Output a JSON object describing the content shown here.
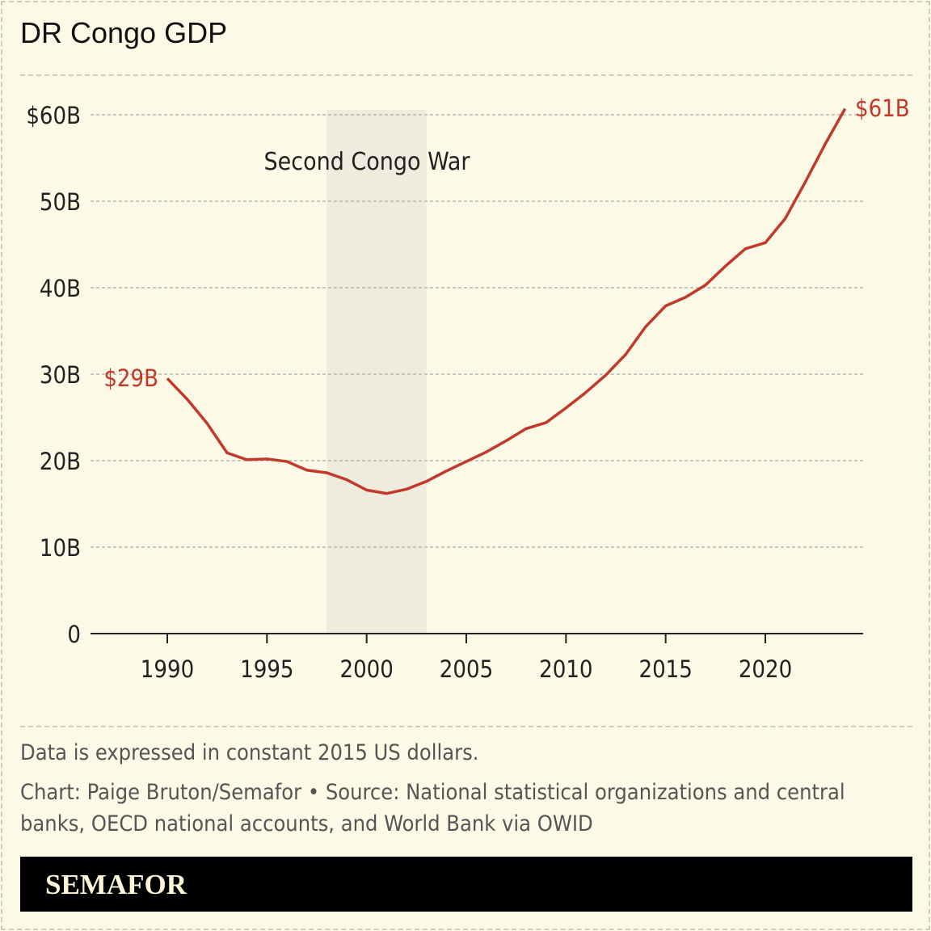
{
  "header": {
    "title": "DR Congo GDP"
  },
  "chart_data": {
    "type": "line",
    "title": "DR Congo GDP",
    "x": [
      1990,
      1991,
      1992,
      1993,
      1994,
      1995,
      1996,
      1997,
      1998,
      1999,
      2000,
      2001,
      2002,
      2003,
      2004,
      2005,
      2006,
      2007,
      2008,
      2009,
      2010,
      2011,
      2012,
      2013,
      2014,
      2015,
      2016,
      2017,
      2018,
      2019,
      2020,
      2021,
      2022,
      2023,
      2024
    ],
    "series": [
      {
        "values": [
          29.5,
          27.1,
          24.3,
          20.9,
          20.1,
          20.2,
          19.9,
          18.9,
          18.6,
          17.8,
          16.6,
          16.2,
          16.7,
          17.6,
          18.8,
          19.9,
          21.0,
          22.3,
          23.7,
          24.4,
          26.1,
          27.9,
          29.9,
          32.3,
          35.5,
          37.9,
          38.9,
          40.3,
          42.5,
          44.5,
          45.2,
          48.0,
          52.2,
          56.6,
          60.7
        ],
        "color": "#c0392b"
      }
    ],
    "xlim": [
      1986,
      2029
    ],
    "ylim": [
      0,
      60
    ],
    "x_ticks": [
      1990,
      1995,
      2000,
      2005,
      2010,
      2015,
      2020
    ],
    "x_tick_labels": [
      "1990",
      "1995",
      "2000",
      "2005",
      "2010",
      "2015",
      "2020"
    ],
    "y_ticks": [
      0,
      10,
      20,
      30,
      40,
      50,
      60
    ],
    "y_tick_labels": [
      "0",
      "10B",
      "20B",
      "30B",
      "40B",
      "50B",
      "$60B"
    ],
    "grid": true,
    "shaded_region": {
      "x": [
        1998,
        2003
      ],
      "label": "Second Congo War",
      "color": "#efebdd"
    },
    "annotations": [
      {
        "x": 1990,
        "label": "$29B"
      },
      {
        "x": 2024,
        "label": "$61B"
      }
    ]
  },
  "footer": {
    "note": "Data is expressed in constant 2015 US dollars.",
    "credit": "Chart: Paige Bruton/Semafor • Source: National statistical organizations and central banks, OECD national accounts, and World Bank via OWID",
    "logo": "SEMAFOR"
  }
}
